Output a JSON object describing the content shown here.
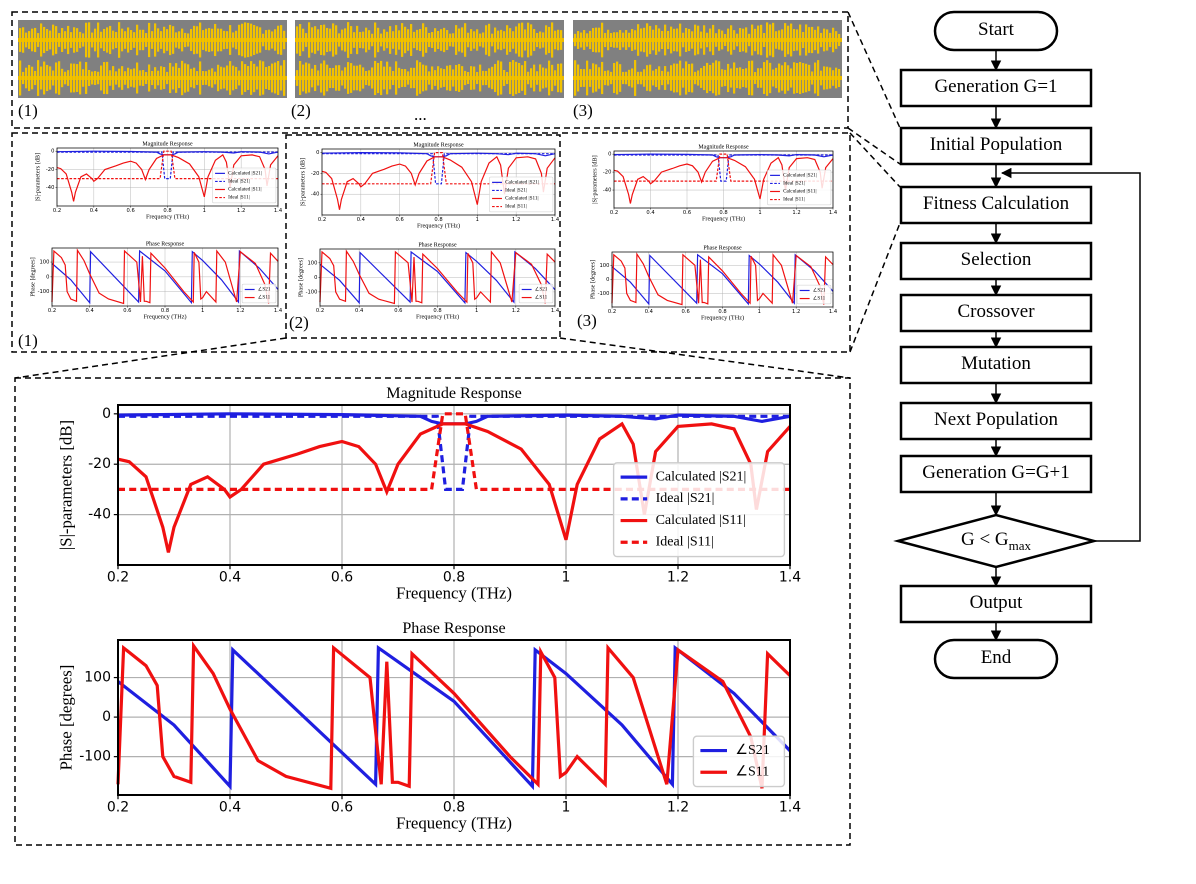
{
  "panels": {
    "structure_labels": [
      "(1)",
      "(2)",
      "(3)"
    ],
    "ellipsis": "...",
    "spectra_labels": [
      "(1)",
      "(2)",
      "(3)"
    ]
  },
  "chart_data": [
    {
      "type": "line",
      "title": "Magnitude Response",
      "xlabel": "Frequency (THz)",
      "ylabel": "|S|-parameters [dB]",
      "xlim": [
        0.2,
        1.4
      ],
      "xticks": [
        0.2,
        0.4,
        0.6,
        0.8,
        1.0,
        1.2,
        1.4
      ],
      "ylim": [
        -60,
        3.5
      ],
      "yticks": [
        0,
        -20,
        -40
      ],
      "grid": true,
      "legend": "lower right",
      "series": [
        {
          "name": "Calculated |S21|",
          "color": "#1f1fe0",
          "dash": false,
          "x": [
            0.2,
            0.4,
            0.6,
            0.74,
            0.76,
            0.78,
            0.82,
            0.84,
            0.86,
            1.0,
            1.1,
            1.16,
            1.2,
            1.3,
            1.35,
            1.4
          ],
          "values": [
            -0.5,
            0,
            -0.3,
            -1,
            -3,
            -4,
            -4,
            -3,
            -1,
            -0.5,
            -1,
            -2,
            -0.5,
            -1,
            -3,
            -1
          ]
        },
        {
          "name": "Ideal |S21|",
          "color": "#1f1fe0",
          "dash": true,
          "x": [
            0.2,
            0.77,
            0.785,
            0.815,
            0.83,
            1.4
          ],
          "values": [
            -1,
            -1,
            -30,
            -30,
            -1,
            -1
          ]
        },
        {
          "name": "Calculated |S11|",
          "color": "#f01010",
          "dash": false,
          "x": [
            0.2,
            0.22,
            0.25,
            0.28,
            0.29,
            0.3,
            0.33,
            0.36,
            0.39,
            0.4,
            0.42,
            0.46,
            0.52,
            0.56,
            0.6,
            0.63,
            0.66,
            0.68,
            0.7,
            0.74,
            0.78,
            0.82,
            0.86,
            0.92,
            0.97,
            1.0,
            1.02,
            1.06,
            1.1,
            1.12,
            1.14,
            1.16,
            1.2,
            1.26,
            1.3,
            1.33,
            1.34,
            1.36,
            1.4
          ],
          "values": [
            -18,
            -19,
            -25,
            -45,
            -55,
            -45,
            -28,
            -25,
            -30,
            -33,
            -30,
            -20,
            -16,
            -13,
            -11,
            -13,
            -20,
            -31,
            -20,
            -8,
            -4,
            -4,
            -7,
            -14,
            -28,
            -50,
            -28,
            -10,
            -4,
            -12,
            -40,
            -15,
            -5,
            -4,
            -6,
            -20,
            -38,
            -15,
            -5
          ]
        },
        {
          "name": "Ideal |S11|",
          "color": "#f01010",
          "dash": true,
          "x": [
            0.2,
            0.76,
            0.78,
            0.82,
            0.84,
            1.4
          ],
          "values": [
            -30,
            -30,
            0,
            0,
            -30,
            -30
          ]
        }
      ]
    },
    {
      "type": "line",
      "title": "Phase Response",
      "xlabel": "Frequency (THz)",
      "ylabel": "Phase [degrees]",
      "xlim": [
        0.2,
        1.4
      ],
      "xticks": [
        0.2,
        0.4,
        0.6,
        0.8,
        1.0,
        1.2,
        1.4
      ],
      "ylim": [
        -197,
        195
      ],
      "yticks": [
        100,
        0,
        -100
      ],
      "grid": true,
      "legend": "lower right",
      "series": [
        {
          "name": "∠S21",
          "color": "#1f1fe0",
          "dash": false,
          "x": [
            0.2,
            0.3,
            0.4,
            0.405,
            0.66,
            0.665,
            0.7,
            0.8,
            0.94,
            0.945,
            1.0,
            1.1,
            1.19,
            1.195,
            1.3,
            1.4
          ],
          "values": [
            90,
            -20,
            -175,
            170,
            -170,
            175,
            140,
            40,
            -175,
            170,
            110,
            -20,
            -170,
            175,
            60,
            -85
          ]
        },
        {
          "name": "∠S11",
          "color": "#f01010",
          "dash": false,
          "x": [
            0.2,
            0.21,
            0.25,
            0.27,
            0.28,
            0.3,
            0.33,
            0.335,
            0.37,
            0.4,
            0.45,
            0.5,
            0.58,
            0.585,
            0.65,
            0.67,
            0.68,
            0.69,
            0.7,
            0.72,
            0.725,
            0.8,
            0.9,
            0.95,
            0.955,
            0.98,
            0.99,
            1.0,
            1.02,
            1.07,
            1.075,
            1.12,
            1.18,
            1.2,
            1.28,
            1.33,
            1.35,
            1.36,
            1.4
          ],
          "values": [
            -170,
            175,
            130,
            80,
            -100,
            -150,
            -165,
            180,
            110,
            20,
            -110,
            -150,
            -180,
            175,
            100,
            -170,
            140,
            -165,
            -165,
            -175,
            160,
            60,
            -100,
            -170,
            165,
            100,
            -150,
            -140,
            -100,
            -170,
            175,
            100,
            -170,
            170,
            90,
            -50,
            -180,
            160,
            105
          ]
        }
      ]
    }
  ],
  "flowchart": {
    "nodes": [
      {
        "label": "Start"
      },
      {
        "label": "Generation G=1"
      },
      {
        "label": "Initial Population"
      },
      {
        "label": "Fitness Calculation"
      },
      {
        "label": "Selection"
      },
      {
        "label": "Crossover"
      },
      {
        "label": "Mutation"
      },
      {
        "label": "Next Population"
      },
      {
        "label": "Generation G=G+1"
      },
      {
        "label": "G < G",
        "subscript": "max"
      },
      {
        "label": "Output"
      },
      {
        "label": "End"
      }
    ]
  }
}
